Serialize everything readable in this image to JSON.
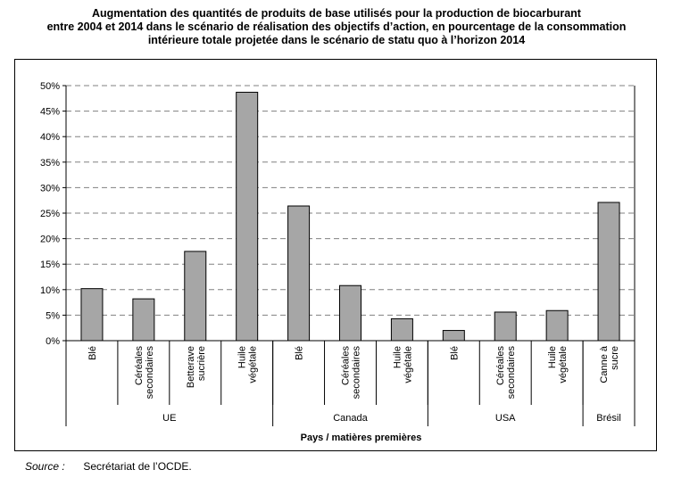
{
  "title_lines": [
    "Augmentation des quantités de produits de base utilisés pour la production de biocarburant",
    "entre 2004 et 2014 dans le scénario de réalisation des objectifs d’action, en pourcentage de la consommation",
    "intérieure totale projetée dans le scénario de statu quo à l’horizon 2014"
  ],
  "source": {
    "label": "Source :",
    "text": "Secrétariat de l’OCDE."
  },
  "chart_data": {
    "type": "bar",
    "title": "Augmentation des quantités de produits de base utilisés pour la production de biocarburant entre 2004 et 2014 dans le scénario de réalisation des objectifs d’action, en pourcentage de la consommation intérieure totale projetée dans le scénario de statu quo à l’horizon 2014",
    "xlabel": "Pays / matières premières",
    "ylabel": "",
    "ylim": [
      0,
      50
    ],
    "yticks": [
      "0%",
      "5%",
      "10%",
      "15%",
      "20%",
      "25%",
      "30%",
      "35%",
      "40%",
      "45%",
      "50%"
    ],
    "grid": "horizontal dashed",
    "legend": "none",
    "bar_color": "#a6a6a6",
    "categories": [
      [
        "Blé"
      ],
      [
        "Céréales",
        "secondaires"
      ],
      [
        "Betterave",
        "sucrière"
      ],
      [
        "Huile",
        "végétale"
      ],
      [
        "Blé"
      ],
      [
        "Céréales",
        "secondaires"
      ],
      [
        "Huile",
        "végétale"
      ],
      [
        "Blé"
      ],
      [
        "Céréales",
        "secondaires"
      ],
      [
        "Huile",
        "végétale"
      ],
      [
        "Canne à",
        "sucre"
      ]
    ],
    "values": [
      10.2,
      8.2,
      17.5,
      48.7,
      26.4,
      10.8,
      4.3,
      2.0,
      5.6,
      5.9,
      27.1
    ],
    "groups": [
      {
        "label": "UE",
        "count": 4
      },
      {
        "label": "Canada",
        "count": 3
      },
      {
        "label": "USA",
        "count": 3
      },
      {
        "label": "Brésil",
        "count": 1
      }
    ]
  }
}
